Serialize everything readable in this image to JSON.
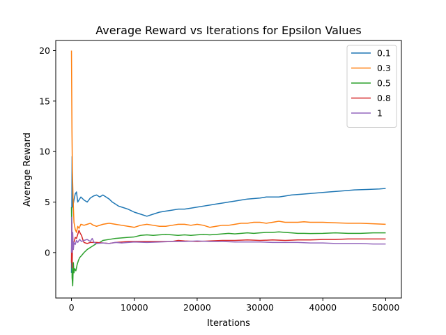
{
  "chart_data": {
    "type": "line",
    "title": "Average Reward vs Iterations for Epsilon Values",
    "xlabel": "Iterations",
    "ylabel": "Average Reward",
    "xlim": [
      -2500,
      52500
    ],
    "ylim": [
      -4.5,
      21.0
    ],
    "xticks": [
      0,
      10000,
      20000,
      30000,
      40000,
      50000
    ],
    "yticks": [
      0,
      5,
      10,
      15,
      20
    ],
    "grid": false,
    "legend_position": "top-right",
    "series": [
      {
        "name": "0.1",
        "color": "#1f77b4",
        "points": [
          [
            0,
            -2.0
          ],
          [
            100,
            9.5
          ],
          [
            200,
            4.5
          ],
          [
            400,
            5.2
          ],
          [
            600,
            5.8
          ],
          [
            800,
            6.0
          ],
          [
            1000,
            5.0
          ],
          [
            1500,
            5.5
          ],
          [
            2000,
            5.2
          ],
          [
            2500,
            5.0
          ],
          [
            3000,
            5.4
          ],
          [
            3500,
            5.6
          ],
          [
            4000,
            5.7
          ],
          [
            4500,
            5.5
          ],
          [
            5000,
            5.7
          ],
          [
            5500,
            5.5
          ],
          [
            6000,
            5.3
          ],
          [
            6500,
            5.0
          ],
          [
            7000,
            4.8
          ],
          [
            7500,
            4.6
          ],
          [
            8000,
            4.5
          ],
          [
            9000,
            4.3
          ],
          [
            10000,
            4.0
          ],
          [
            11000,
            3.8
          ],
          [
            12000,
            3.6
          ],
          [
            13000,
            3.8
          ],
          [
            14000,
            4.0
          ],
          [
            15000,
            4.1
          ],
          [
            16000,
            4.2
          ],
          [
            17000,
            4.3
          ],
          [
            18000,
            4.3
          ],
          [
            19000,
            4.4
          ],
          [
            20000,
            4.5
          ],
          [
            21000,
            4.6
          ],
          [
            22000,
            4.7
          ],
          [
            23000,
            4.8
          ],
          [
            24000,
            4.9
          ],
          [
            25000,
            5.0
          ],
          [
            26000,
            5.1
          ],
          [
            27000,
            5.2
          ],
          [
            28000,
            5.3
          ],
          [
            29000,
            5.35
          ],
          [
            30000,
            5.4
          ],
          [
            31000,
            5.5
          ],
          [
            32000,
            5.5
          ],
          [
            33000,
            5.5
          ],
          [
            34000,
            5.6
          ],
          [
            35000,
            5.7
          ],
          [
            37000,
            5.8
          ],
          [
            39000,
            5.9
          ],
          [
            41000,
            6.0
          ],
          [
            43000,
            6.1
          ],
          [
            45000,
            6.2
          ],
          [
            47000,
            6.25
          ],
          [
            49000,
            6.3
          ],
          [
            50000,
            6.35
          ]
        ]
      },
      {
        "name": "0.3",
        "color": "#ff7f0e",
        "points": [
          [
            0,
            20.0
          ],
          [
            80,
            12.0
          ],
          [
            150,
            8.0
          ],
          [
            250,
            5.5
          ],
          [
            400,
            3.0
          ],
          [
            600,
            2.3
          ],
          [
            800,
            2.0
          ],
          [
            1000,
            2.6
          ],
          [
            1200,
            2.4
          ],
          [
            1500,
            2.8
          ],
          [
            2000,
            2.7
          ],
          [
            2500,
            2.8
          ],
          [
            3000,
            2.9
          ],
          [
            3500,
            2.7
          ],
          [
            4000,
            2.6
          ],
          [
            5000,
            2.8
          ],
          [
            6000,
            2.9
          ],
          [
            7000,
            2.8
          ],
          [
            8000,
            2.7
          ],
          [
            9000,
            2.6
          ],
          [
            10000,
            2.5
          ],
          [
            11000,
            2.7
          ],
          [
            12000,
            2.8
          ],
          [
            13000,
            2.7
          ],
          [
            14000,
            2.6
          ],
          [
            15000,
            2.6
          ],
          [
            16000,
            2.7
          ],
          [
            17000,
            2.8
          ],
          [
            18000,
            2.8
          ],
          [
            19000,
            2.7
          ],
          [
            20000,
            2.8
          ],
          [
            21000,
            2.7
          ],
          [
            22000,
            2.5
          ],
          [
            23000,
            2.6
          ],
          [
            24000,
            2.7
          ],
          [
            25000,
            2.7
          ],
          [
            26000,
            2.8
          ],
          [
            27000,
            2.9
          ],
          [
            28000,
            2.9
          ],
          [
            29000,
            3.0
          ],
          [
            30000,
            3.0
          ],
          [
            31000,
            2.9
          ],
          [
            32000,
            3.0
          ],
          [
            33000,
            3.1
          ],
          [
            34000,
            3.0
          ],
          [
            35000,
            3.0
          ],
          [
            36000,
            3.0
          ],
          [
            37000,
            3.05
          ],
          [
            38000,
            3.0
          ],
          [
            40000,
            3.0
          ],
          [
            42000,
            2.95
          ],
          [
            44000,
            2.9
          ],
          [
            46000,
            2.9
          ],
          [
            48000,
            2.85
          ],
          [
            50000,
            2.8
          ]
        ]
      },
      {
        "name": "0.5",
        "color": "#2ca02c",
        "points": [
          [
            0,
            4.5
          ],
          [
            50,
            1.0
          ],
          [
            100,
            -2.5
          ],
          [
            200,
            -3.3
          ],
          [
            300,
            -1.0
          ],
          [
            400,
            -2.0
          ],
          [
            500,
            -1.6
          ],
          [
            700,
            -1.8
          ],
          [
            900,
            -1.2
          ],
          [
            1100,
            -0.8
          ],
          [
            1300,
            -0.5
          ],
          [
            1600,
            -0.3
          ],
          [
            2000,
            0.0
          ],
          [
            2500,
            0.3
          ],
          [
            3000,
            0.5
          ],
          [
            3500,
            0.7
          ],
          [
            4000,
            0.9
          ],
          [
            4500,
            1.0
          ],
          [
            5000,
            1.2
          ],
          [
            6000,
            1.3
          ],
          [
            7000,
            1.4
          ],
          [
            8000,
            1.45
          ],
          [
            9000,
            1.5
          ],
          [
            10000,
            1.55
          ],
          [
            11000,
            1.7
          ],
          [
            12000,
            1.75
          ],
          [
            13000,
            1.7
          ],
          [
            14000,
            1.75
          ],
          [
            15000,
            1.8
          ],
          [
            16000,
            1.75
          ],
          [
            17000,
            1.7
          ],
          [
            18000,
            1.75
          ],
          [
            19000,
            1.7
          ],
          [
            20000,
            1.75
          ],
          [
            21000,
            1.8
          ],
          [
            22000,
            1.75
          ],
          [
            23000,
            1.8
          ],
          [
            24000,
            1.85
          ],
          [
            25000,
            1.9
          ],
          [
            26000,
            1.85
          ],
          [
            27000,
            1.9
          ],
          [
            28000,
            1.95
          ],
          [
            29000,
            1.9
          ],
          [
            30000,
            1.95
          ],
          [
            31000,
            2.0
          ],
          [
            32000,
            2.0
          ],
          [
            33000,
            2.05
          ],
          [
            34000,
            2.0
          ],
          [
            35000,
            1.95
          ],
          [
            36000,
            1.9
          ],
          [
            37000,
            1.9
          ],
          [
            38000,
            1.88
          ],
          [
            40000,
            1.9
          ],
          [
            42000,
            1.95
          ],
          [
            44000,
            1.9
          ],
          [
            46000,
            1.9
          ],
          [
            48000,
            1.95
          ],
          [
            50000,
            1.95
          ]
        ]
      },
      {
        "name": "0.8",
        "color": "#d62728",
        "points": [
          [
            0,
            -1.0
          ],
          [
            50,
            3.0
          ],
          [
            100,
            -1.5
          ],
          [
            200,
            1.5
          ],
          [
            300,
            0.5
          ],
          [
            400,
            1.0
          ],
          [
            600,
            1.5
          ],
          [
            800,
            1.4
          ],
          [
            1000,
            1.8
          ],
          [
            1200,
            2.2
          ],
          [
            1400,
            1.9
          ],
          [
            1600,
            1.7
          ],
          [
            1800,
            1.3
          ],
          [
            2000,
            1.0
          ],
          [
            2500,
            0.9
          ],
          [
            3000,
            1.0
          ],
          [
            4000,
            1.0
          ],
          [
            5000,
            0.95
          ],
          [
            6000,
            0.9
          ],
          [
            7000,
            1.0
          ],
          [
            8000,
            1.05
          ],
          [
            9000,
            1.1
          ],
          [
            10000,
            1.1
          ],
          [
            12000,
            1.1
          ],
          [
            14000,
            1.1
          ],
          [
            16000,
            1.1
          ],
          [
            17000,
            1.2
          ],
          [
            18000,
            1.15
          ],
          [
            20000,
            1.1
          ],
          [
            22000,
            1.15
          ],
          [
            24000,
            1.2
          ],
          [
            26000,
            1.2
          ],
          [
            28000,
            1.25
          ],
          [
            30000,
            1.2
          ],
          [
            32000,
            1.25
          ],
          [
            34000,
            1.2
          ],
          [
            36000,
            1.25
          ],
          [
            38000,
            1.25
          ],
          [
            40000,
            1.3
          ],
          [
            42000,
            1.3
          ],
          [
            44000,
            1.35
          ],
          [
            46000,
            1.35
          ],
          [
            48000,
            1.35
          ],
          [
            50000,
            1.35
          ]
        ]
      },
      {
        "name": "1",
        "color": "#9467bd",
        "points": [
          [
            0,
            0.0
          ],
          [
            50,
            3.5
          ],
          [
            100,
            0.0
          ],
          [
            200,
            2.0
          ],
          [
            300,
            0.3
          ],
          [
            400,
            1.0
          ],
          [
            600,
            0.8
          ],
          [
            800,
            1.2
          ],
          [
            1000,
            1.0
          ],
          [
            1300,
            1.3
          ],
          [
            1600,
            1.1
          ],
          [
            2000,
            1.2
          ],
          [
            2500,
            1.3
          ],
          [
            3000,
            1.1
          ],
          [
            3300,
            1.4
          ],
          [
            3600,
            1.0
          ],
          [
            4000,
            0.9
          ],
          [
            5000,
            0.95
          ],
          [
            6000,
            0.9
          ],
          [
            7000,
            1.0
          ],
          [
            8000,
            0.95
          ],
          [
            9000,
            1.0
          ],
          [
            10000,
            1.05
          ],
          [
            12000,
            1.0
          ],
          [
            14000,
            1.05
          ],
          [
            16000,
            1.1
          ],
          [
            18000,
            1.1
          ],
          [
            20000,
            1.15
          ],
          [
            22000,
            1.1
          ],
          [
            24000,
            1.1
          ],
          [
            26000,
            1.05
          ],
          [
            28000,
            1.05
          ],
          [
            30000,
            1.05
          ],
          [
            32000,
            1.0
          ],
          [
            34000,
            1.0
          ],
          [
            36000,
            1.0
          ],
          [
            38000,
            0.95
          ],
          [
            40000,
            0.95
          ],
          [
            42000,
            0.9
          ],
          [
            44000,
            0.9
          ],
          [
            46000,
            0.9
          ],
          [
            48000,
            0.85
          ],
          [
            50000,
            0.85
          ]
        ]
      }
    ]
  }
}
